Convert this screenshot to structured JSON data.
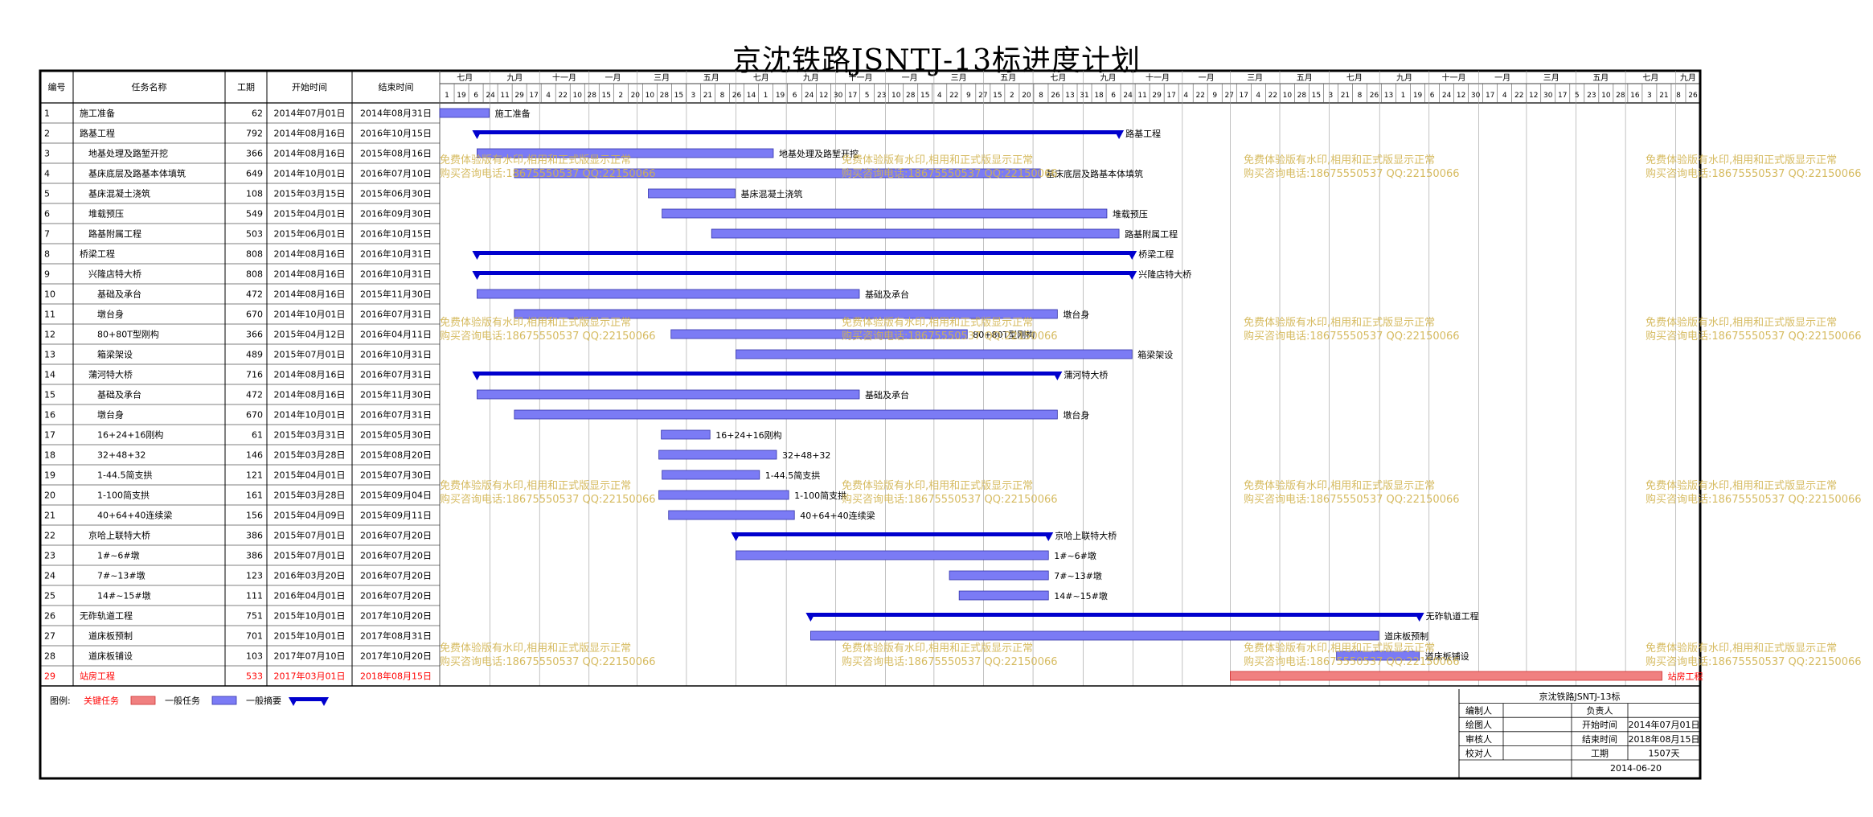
{
  "title": "京沈铁路JSNTJ-13标进度计划",
  "table": {
    "headers": [
      "编号",
      "任务名称",
      "工期",
      "开始时间",
      "结束时间"
    ],
    "rows": [
      {
        "id": "1",
        "name": "施工准备",
        "duration": "62",
        "start": "2014年07月01日",
        "end": "2014年08月31日",
        "level": 0,
        "type": "normal"
      },
      {
        "id": "2",
        "name": "路基工程",
        "duration": "792",
        "start": "2014年08月16日",
        "end": "2016年10月15日",
        "level": 0,
        "type": "summary"
      },
      {
        "id": "3",
        "name": "地基处理及路堑开挖",
        "duration": "366",
        "start": "2014年08月16日",
        "end": "2015年08月16日",
        "level": 1,
        "type": "normal"
      },
      {
        "id": "4",
        "name": "基床底层及路基本体填筑",
        "duration": "649",
        "start": "2014年10月01日",
        "end": "2016年07月10日",
        "level": 1,
        "type": "normal"
      },
      {
        "id": "5",
        "name": "基床混凝土浇筑",
        "duration": "108",
        "start": "2015年03月15日",
        "end": "2015年06月30日",
        "level": 1,
        "type": "normal"
      },
      {
        "id": "6",
        "name": "堆载预压",
        "duration": "549",
        "start": "2015年04月01日",
        "end": "2016年09月30日",
        "level": 1,
        "type": "normal"
      },
      {
        "id": "7",
        "name": "路基附属工程",
        "duration": "503",
        "start": "2015年06月01日",
        "end": "2016年10月15日",
        "level": 1,
        "type": "normal"
      },
      {
        "id": "8",
        "name": "桥梁工程",
        "duration": "808",
        "start": "2014年08月16日",
        "end": "2016年10月31日",
        "level": 0,
        "type": "summary"
      },
      {
        "id": "9",
        "name": "兴隆店特大桥",
        "duration": "808",
        "start": "2014年08月16日",
        "end": "2016年10月31日",
        "level": 1,
        "type": "summary"
      },
      {
        "id": "10",
        "name": "基础及承台",
        "duration": "472",
        "start": "2014年08月16日",
        "end": "2015年11月30日",
        "level": 2,
        "type": "normal"
      },
      {
        "id": "11",
        "name": "墩台身",
        "duration": "670",
        "start": "2014年10月01日",
        "end": "2016年07月31日",
        "level": 2,
        "type": "normal"
      },
      {
        "id": "12",
        "name": "80+80T型刚构",
        "duration": "366",
        "start": "2015年04月12日",
        "end": "2016年04月11日",
        "level": 2,
        "type": "normal"
      },
      {
        "id": "13",
        "name": "箱梁架设",
        "duration": "489",
        "start": "2015年07月01日",
        "end": "2016年10月31日",
        "level": 2,
        "type": "normal"
      },
      {
        "id": "14",
        "name": "蒲河特大桥",
        "duration": "716",
        "start": "2014年08月16日",
        "end": "2016年07月31日",
        "level": 1,
        "type": "summary"
      },
      {
        "id": "15",
        "name": "基础及承台",
        "duration": "472",
        "start": "2014年08月16日",
        "end": "2015年11月30日",
        "level": 2,
        "type": "normal"
      },
      {
        "id": "16",
        "name": "墩台身",
        "duration": "670",
        "start": "2014年10月01日",
        "end": "2016年07月31日",
        "level": 2,
        "type": "normal"
      },
      {
        "id": "17",
        "name": "16+24+16刚构",
        "duration": "61",
        "start": "2015年03月31日",
        "end": "2015年05月30日",
        "level": 2,
        "type": "normal"
      },
      {
        "id": "18",
        "name": "32+48+32",
        "duration": "146",
        "start": "2015年03月28日",
        "end": "2015年08月20日",
        "level": 2,
        "type": "normal"
      },
      {
        "id": "19",
        "name": "1-44.5简支拱",
        "duration": "121",
        "start": "2015年04月01日",
        "end": "2015年07月30日",
        "level": 2,
        "type": "normal"
      },
      {
        "id": "20",
        "name": "1-100简支拱",
        "duration": "161",
        "start": "2015年03月28日",
        "end": "2015年09月04日",
        "level": 2,
        "type": "normal"
      },
      {
        "id": "21",
        "name": "40+64+40连续梁",
        "duration": "156",
        "start": "2015年04月09日",
        "end": "2015年09月11日",
        "level": 2,
        "type": "normal"
      },
      {
        "id": "22",
        "name": "京哈上联特大桥",
        "duration": "386",
        "start": "2015年07月01日",
        "end": "2016年07月20日",
        "level": 1,
        "type": "summary"
      },
      {
        "id": "23",
        "name": "1#~6#墩",
        "duration": "386",
        "start": "2015年07月01日",
        "end": "2016年07月20日",
        "level": 2,
        "type": "normal"
      },
      {
        "id": "24",
        "name": "7#~13#墩",
        "duration": "123",
        "start": "2016年03月20日",
        "end": "2016年07月20日",
        "level": 2,
        "type": "normal"
      },
      {
        "id": "25",
        "name": "14#~15#墩",
        "duration": "111",
        "start": "2016年04月01日",
        "end": "2016年07月20日",
        "level": 2,
        "type": "normal"
      },
      {
        "id": "26",
        "name": "无砟轨道工程",
        "duration": "751",
        "start": "2015年10月01日",
        "end": "2017年10月20日",
        "level": 0,
        "type": "summary"
      },
      {
        "id": "27",
        "name": "道床板预制",
        "duration": "701",
        "start": "2015年10月01日",
        "end": "2017年08月31日",
        "level": 1,
        "type": "normal"
      },
      {
        "id": "28",
        "name": "道床板铺设",
        "duration": "103",
        "start": "2017年07月10日",
        "end": "2017年10月20日",
        "level": 1,
        "type": "normal"
      },
      {
        "id": "29",
        "name": "站房工程",
        "duration": "533",
        "start": "2017年03月01日",
        "end": "2018年08月15日",
        "level": 0,
        "type": "critical"
      }
    ]
  },
  "timeline": {
    "months": [
      "七月",
      "九月",
      "十一月",
      "一月",
      "三月",
      "五月",
      "七月",
      "九月",
      "十一月",
      "一月",
      "三月",
      "五月",
      "七月",
      "九月",
      "十一月",
      "一月",
      "三月",
      "五月",
      "七月",
      "九月",
      "十一月",
      "一月",
      "三月",
      "五月",
      "七月",
      "九月"
    ],
    "days": [
      "1",
      "19",
      "6",
      "24",
      "11",
      "29",
      "17",
      "4",
      "22",
      "10",
      "28",
      "15",
      "2",
      "20",
      "10",
      "28",
      "15",
      "3",
      "21",
      "8",
      "26",
      "14",
      "1",
      "19",
      "6",
      "24",
      "12",
      "30",
      "17",
      "5",
      "23",
      "10",
      "28",
      "15",
      "4",
      "22",
      "9",
      "27",
      "15",
      "2",
      "20",
      "8",
      "26",
      "13",
      "31",
      "18",
      "6",
      "24",
      "11",
      "29",
      "17",
      "4",
      "22",
      "9",
      "27",
      "17",
      "4",
      "22",
      "10",
      "28",
      "15",
      "3",
      "21",
      "8",
      "26",
      "13",
      "1",
      "19",
      "6",
      "24",
      "12",
      "30",
      "17",
      "4",
      "22",
      "12",
      "30",
      "17",
      "5",
      "23",
      "10",
      "28",
      "16",
      "3",
      "21",
      "8",
      "26"
    ]
  },
  "legend": {
    "label": "图例:",
    "items": [
      {
        "label": "关键任务",
        "type": "critical"
      },
      {
        "label": "一般任务",
        "type": "normal"
      },
      {
        "label": "一般摘要",
        "type": "summary"
      }
    ]
  },
  "info_box": {
    "title": "京沈铁路JSNTJ-13标",
    "rows": [
      [
        "编制人",
        "",
        "负责人",
        ""
      ],
      [
        "绘图人",
        "",
        "开始时间",
        "2014年07月01日"
      ],
      [
        "审核人",
        "",
        "结束时间",
        "2018年08月15日"
      ],
      [
        "校对人",
        "",
        "工期",
        "1507天"
      ]
    ],
    "date": "2014-06-20"
  },
  "watermark": {
    "line1": "免费体验版有水印,相用和正式版显示正常",
    "line2": "购买咨询电话:18675550537 QQ:22150066"
  },
  "colors": {
    "normal": "#7b7bf5",
    "summary": "#0000cd",
    "critical": "#f08080",
    "critical_text": "#ff0000",
    "watermark": "#d2b450"
  },
  "chart_data": {
    "type": "gantt",
    "title": "京沈铁路JSNTJ-13标进度计划",
    "x_axis": {
      "type": "date",
      "range": [
        "2014-07-01",
        "2018-10-01"
      ]
    },
    "tasks": [
      {
        "name": "施工准备",
        "start": "2014-07-01",
        "end": "2014-08-31",
        "type": "normal"
      },
      {
        "name": "路基工程",
        "start": "2014-08-16",
        "end": "2016-10-15",
        "type": "summary"
      },
      {
        "name": "地基处理及路堑开挖",
        "start": "2014-08-16",
        "end": "2015-08-16",
        "type": "normal"
      },
      {
        "name": "基床底层及路基本体填筑",
        "start": "2014-10-01",
        "end": "2016-07-10",
        "type": "normal"
      },
      {
        "name": "基床混凝土浇筑",
        "start": "2015-03-15",
        "end": "2015-06-30",
        "type": "normal"
      },
      {
        "name": "堆载预压",
        "start": "2015-04-01",
        "end": "2016-09-30",
        "type": "normal"
      },
      {
        "name": "路基附属工程",
        "start": "2015-06-01",
        "end": "2016-10-15",
        "type": "normal"
      },
      {
        "name": "桥梁工程",
        "start": "2014-08-16",
        "end": "2016-10-31",
        "type": "summary"
      },
      {
        "name": "兴隆店特大桥",
        "start": "2014-08-16",
        "end": "2016-10-31",
        "type": "summary"
      },
      {
        "name": "基础及承台",
        "start": "2014-08-16",
        "end": "2015-11-30",
        "type": "normal"
      },
      {
        "name": "墩台身",
        "start": "2014-10-01",
        "end": "2016-07-31",
        "type": "normal"
      },
      {
        "name": "80+80T型刚构",
        "start": "2015-04-12",
        "end": "2016-04-11",
        "type": "normal"
      },
      {
        "name": "箱梁架设",
        "start": "2015-07-01",
        "end": "2016-10-31",
        "type": "normal"
      },
      {
        "name": "蒲河特大桥",
        "start": "2014-08-16",
        "end": "2016-07-31",
        "type": "summary"
      },
      {
        "name": "基础及承台",
        "start": "2014-08-16",
        "end": "2015-11-30",
        "type": "normal"
      },
      {
        "name": "墩台身",
        "start": "2014-10-01",
        "end": "2016-07-31",
        "type": "normal"
      },
      {
        "name": "16+24+16刚构",
        "start": "2015-03-31",
        "end": "2015-05-30",
        "type": "normal"
      },
      {
        "name": "32+48+32",
        "start": "2015-03-28",
        "end": "2015-08-20",
        "type": "normal"
      },
      {
        "name": "1-44.5简支拱",
        "start": "2015-04-01",
        "end": "2015-07-30",
        "type": "normal"
      },
      {
        "name": "1-100简支拱",
        "start": "2015-03-28",
        "end": "2015-09-04",
        "type": "normal"
      },
      {
        "name": "40+64+40连续梁",
        "start": "2015-04-09",
        "end": "2015-09-11",
        "type": "normal"
      },
      {
        "name": "京哈上联特大桥",
        "start": "2015-07-01",
        "end": "2016-07-20",
        "type": "summary"
      },
      {
        "name": "1#~6#墩",
        "start": "2015-07-01",
        "end": "2016-07-20",
        "type": "normal"
      },
      {
        "name": "7#~13#墩",
        "start": "2016-03-20",
        "end": "2016-07-20",
        "type": "normal"
      },
      {
        "name": "14#~15#墩",
        "start": "2016-04-01",
        "end": "2016-07-20",
        "type": "normal"
      },
      {
        "name": "无砟轨道工程",
        "start": "2015-10-01",
        "end": "2017-10-20",
        "type": "summary"
      },
      {
        "name": "道床板预制",
        "start": "2015-10-01",
        "end": "2017-08-31",
        "type": "normal"
      },
      {
        "name": "道床板铺设",
        "start": "2017-07-10",
        "end": "2017-10-20",
        "type": "normal"
      },
      {
        "name": "站房工程",
        "start": "2017-03-01",
        "end": "2018-08-15",
        "type": "critical"
      }
    ]
  }
}
